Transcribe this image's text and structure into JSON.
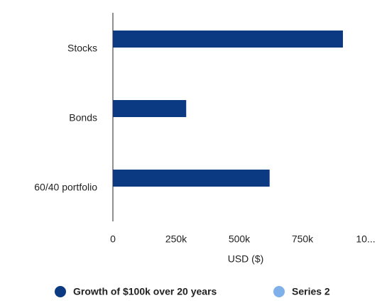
{
  "chart_data": {
    "type": "bar",
    "orientation": "horizontal",
    "categories": [
      "Stocks",
      "Bonds",
      "60/40 portfolio"
    ],
    "series": [
      {
        "name": "Growth of $100k over 20 years",
        "color": "#0b3a82",
        "values": [
          910000,
          290000,
          620000
        ]
      },
      {
        "name": "Series 2",
        "color": "#7fb0ea",
        "values": [
          null,
          null,
          null
        ]
      }
    ],
    "x_label": "USD ($)",
    "xlim": [
      0,
      1000000
    ],
    "xticks": [
      0,
      {
        "value": 250000,
        "label": "250k"
      },
      {
        "value": 500000,
        "label": "500k"
      },
      {
        "value": 750000,
        "label": "750k"
      },
      {
        "value": 1000000,
        "label": "10..."
      }
    ],
    "grid": false,
    "legend": "bottom"
  }
}
